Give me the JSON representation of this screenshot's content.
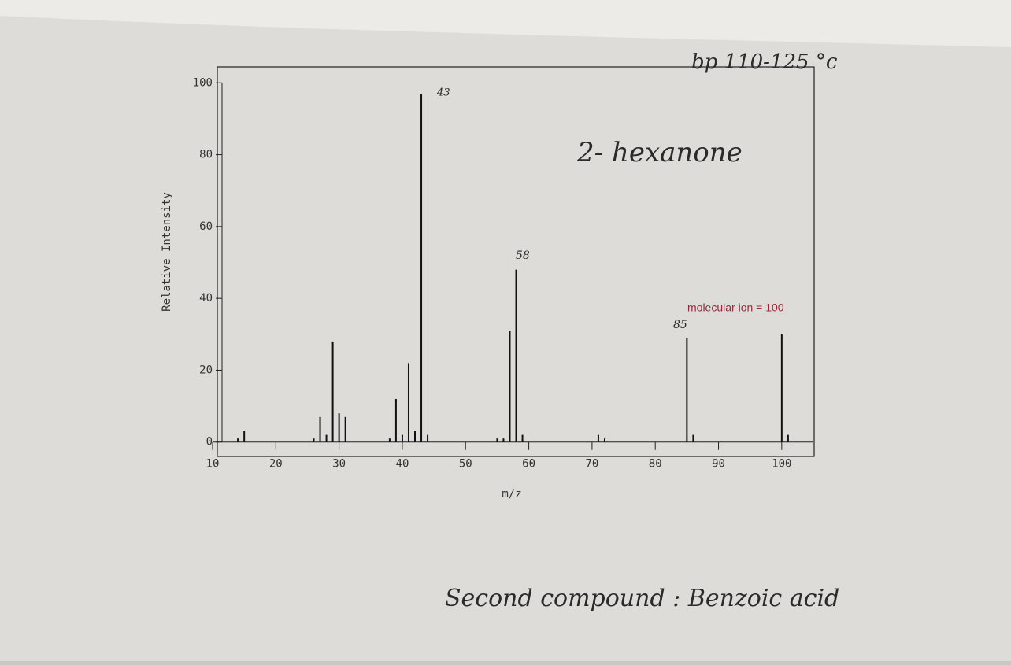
{
  "chart_data": {
    "type": "bar",
    "x": [
      14,
      15,
      26,
      27,
      28,
      29,
      30,
      31,
      38,
      39,
      40,
      41,
      42,
      43,
      44,
      55,
      56,
      57,
      58,
      59,
      71,
      72,
      85,
      86,
      100,
      101
    ],
    "values": [
      1,
      3,
      1,
      7,
      2,
      28,
      8,
      7,
      1,
      12,
      2,
      22,
      3,
      97,
      2,
      1,
      1,
      31,
      48,
      2,
      2,
      1,
      29,
      2,
      30,
      2
    ],
    "color": "#111111",
    "xlabel": "m/z",
    "ylabel": "Relative Intensity",
    "xlim": [
      10,
      105
    ],
    "ylim": [
      -4,
      104
    ],
    "xticks": [
      10,
      20,
      30,
      40,
      50,
      60,
      70,
      80,
      90,
      100
    ],
    "yticks": [
      0,
      20,
      40,
      60,
      80,
      100
    ],
    "annotations": [
      "43",
      "58",
      "85",
      "molecular ion = 100",
      "2- hexanone",
      "bp 110-125 °c",
      "Second compound : Benzoic acid"
    ]
  }
}
